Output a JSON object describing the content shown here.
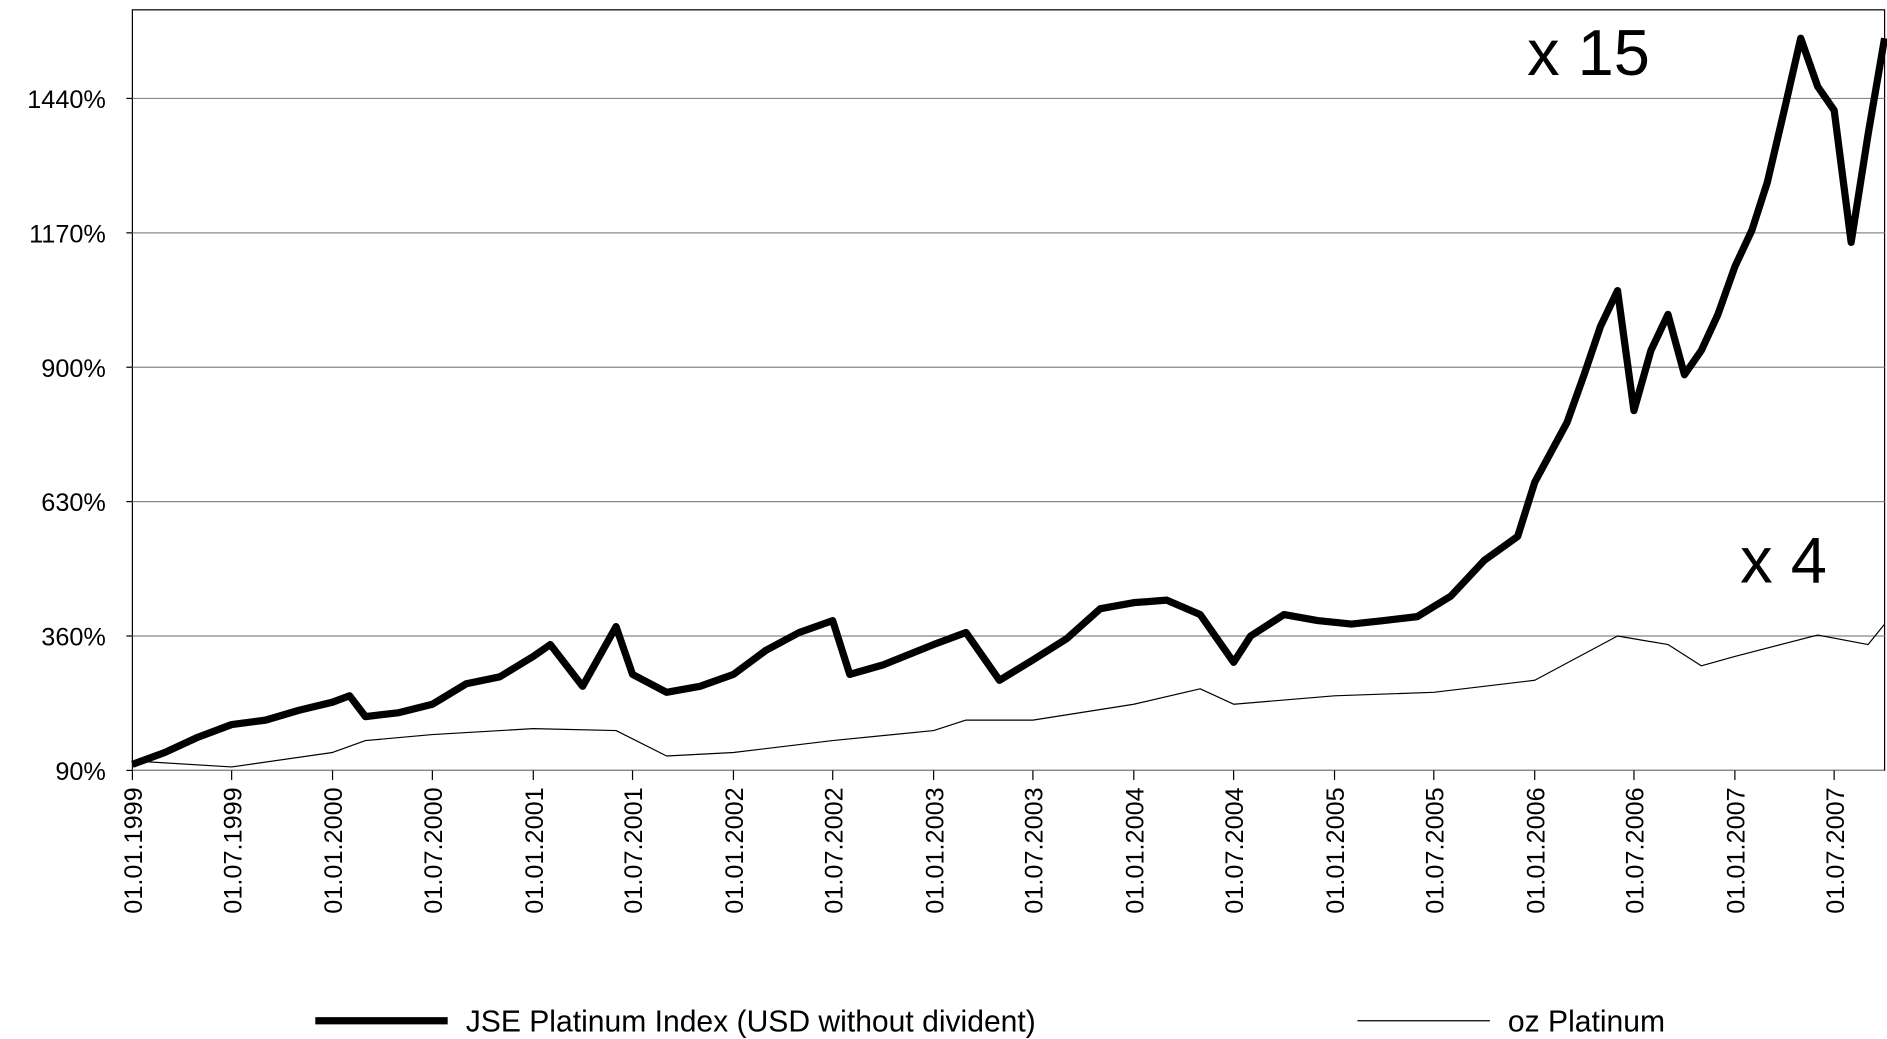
{
  "chart_data": {
    "type": "line",
    "annotations": [
      "x 15",
      "x 4"
    ],
    "xlim": [
      "01.01.1999",
      "01.10.2007"
    ],
    "xticks": [
      "01.01.1999",
      "01.07.1999",
      "01.01.2000",
      "01.07.2000",
      "01.01.2001",
      "01.07.2001",
      "01.01.2002",
      "01.07.2002",
      "01.01.2003",
      "01.07.2003",
      "01.01.2004",
      "01.07.2004",
      "01.01.2005",
      "01.07.2005",
      "01.01.2006",
      "01.07.2006",
      "01.01.2007",
      "01.07.2007"
    ],
    "ylim": [
      90,
      1618
    ],
    "yticks": [
      {
        "value": 90,
        "label": "90%"
      },
      {
        "value": 360,
        "label": "360%"
      },
      {
        "value": 630,
        "label": "630%"
      },
      {
        "value": 900,
        "label": "900%"
      },
      {
        "value": 1170,
        "label": "1170%"
      },
      {
        "value": 1440,
        "label": "1440%"
      }
    ],
    "grid": true,
    "series": [
      {
        "name": "JSE Platinum Index (USD without divident)",
        "color": "#000000",
        "width": 6,
        "x": [
          "01.01.1999",
          "01.03.1999",
          "01.05.1999",
          "01.07.1999",
          "01.09.1999",
          "01.11.1999",
          "01.01.2000",
          "01.02.2000",
          "01.03.2000",
          "01.05.2000",
          "01.07.2000",
          "01.09.2000",
          "01.11.2000",
          "01.01.2001",
          "01.02.2001",
          "01.04.2001",
          "01.06.2001",
          "01.07.2001",
          "01.09.2001",
          "01.11.2001",
          "01.01.2002",
          "01.03.2002",
          "01.05.2002",
          "01.07.2002",
          "01.08.2002",
          "01.10.2002",
          "01.01.2003",
          "01.03.2003",
          "01.05.2003",
          "01.07.2003",
          "01.09.2003",
          "01.11.2003",
          "01.01.2004",
          "01.03.2004",
          "01.05.2004",
          "01.07.2004",
          "01.08.2004",
          "01.10.2004",
          "01.12.2004",
          "01.02.2005",
          "01.04.2005",
          "01.06.2005",
          "01.08.2005",
          "01.10.2005",
          "01.12.2005",
          "01.01.2006",
          "01.03.2006",
          "01.04.2006",
          "01.05.2006",
          "01.06.2006",
          "01.07.2006",
          "01.08.2006",
          "01.09.2006",
          "01.10.2006",
          "01.11.2006",
          "01.12.2006",
          "01.01.2007",
          "01.02.2007",
          "01.03.2007",
          "01.04.2007",
          "01.05.2007",
          "01.06.2007",
          "01.07.2007",
          "01.08.2007",
          "01.09.2007",
          "01.10.2007"
        ],
        "values": [
          102,
          126,
          157,
          182,
          191,
          211,
          227,
          240,
          198,
          206,
          223,
          264,
          278,
          319,
          343,
          259,
          379,
          283,
          247,
          259,
          283,
          331,
          367,
          391,
          283,
          302,
          343,
          367,
          271,
          312,
          355,
          415,
          427,
          432,
          403,
          307,
          360,
          403,
          391,
          384,
          391,
          399,
          440,
          512,
          560,
          669,
          789,
          885,
          982,
          1054,
          813,
          934,
          1006,
          885,
          934,
          1006,
          1102,
          1175,
          1271,
          1416,
          1561,
          1464,
          1416,
          1151,
          1368,
          1561
        ]
      },
      {
        "name": "oz Platinum",
        "color": "#000000",
        "width": 1,
        "x": [
          "01.01.1999",
          "01.07.1999",
          "01.01.2000",
          "01.03.2000",
          "01.07.2000",
          "01.01.2001",
          "01.06.2001",
          "01.09.2001",
          "01.01.2002",
          "01.07.2002",
          "01.01.2003",
          "01.03.2003",
          "01.07.2003",
          "01.01.2004",
          "01.05.2004",
          "01.07.2004",
          "01.01.2005",
          "01.07.2005",
          "01.01.2006",
          "01.06.2006",
          "01.09.2006",
          "01.11.2006",
          "01.01.2007",
          "01.06.2007",
          "01.09.2007",
          "01.10.2007"
        ],
        "values": [
          109,
          97,
          126,
          150,
          162,
          174,
          170,
          119,
          126,
          150,
          170,
          191,
          191,
          223,
          254,
          223,
          240,
          247,
          271,
          360,
          343,
          300,
          319,
          362,
          343,
          384
        ]
      }
    ]
  }
}
